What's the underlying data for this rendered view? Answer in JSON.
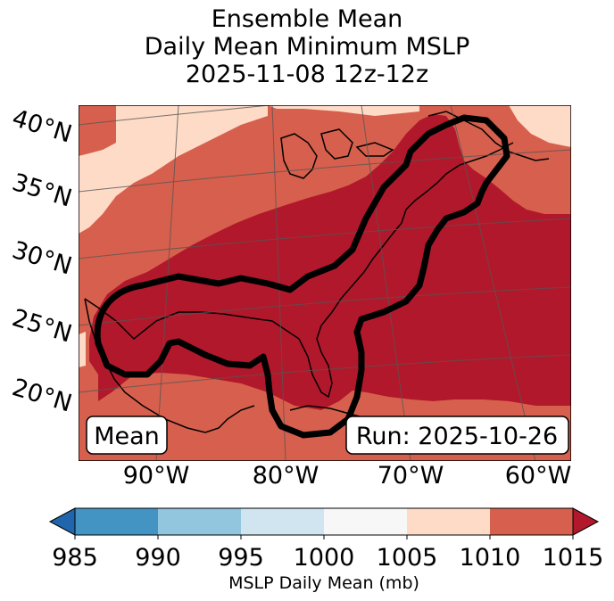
{
  "title": {
    "line1": "Ensemble Mean",
    "line2": "Daily Mean Minimum MSLP",
    "line3": "2025-11-08 12z-12z"
  },
  "map": {
    "lat_labels": [
      "40°N",
      "35°N",
      "30°N",
      "25°N",
      "20°N"
    ],
    "lon_labels": [
      "90°W",
      "80°W",
      "70°W",
      "60°W"
    ],
    "left_box": "Mean",
    "right_box": "Run: 2025-10-26",
    "fill_bands": [
      {
        "range": "1005-1010",
        "color": "#fddbc7"
      },
      {
        "range": "1010-1015",
        "color": "#d6604d"
      },
      {
        "range": ">1015",
        "color": "#b2182b"
      }
    ],
    "contour_color": "#000000"
  },
  "colorbar": {
    "label": "MSLP Daily Mean (mb)",
    "ticks": [
      "985",
      "990",
      "995",
      "1000",
      "1005",
      "1010",
      "1015"
    ],
    "colors": [
      "#4393c3",
      "#92c5de",
      "#d1e5f0",
      "#f7f7f7",
      "#fddbc7",
      "#d6604d"
    ],
    "under_color": "#2166ac",
    "over_color": "#b2182b"
  }
}
